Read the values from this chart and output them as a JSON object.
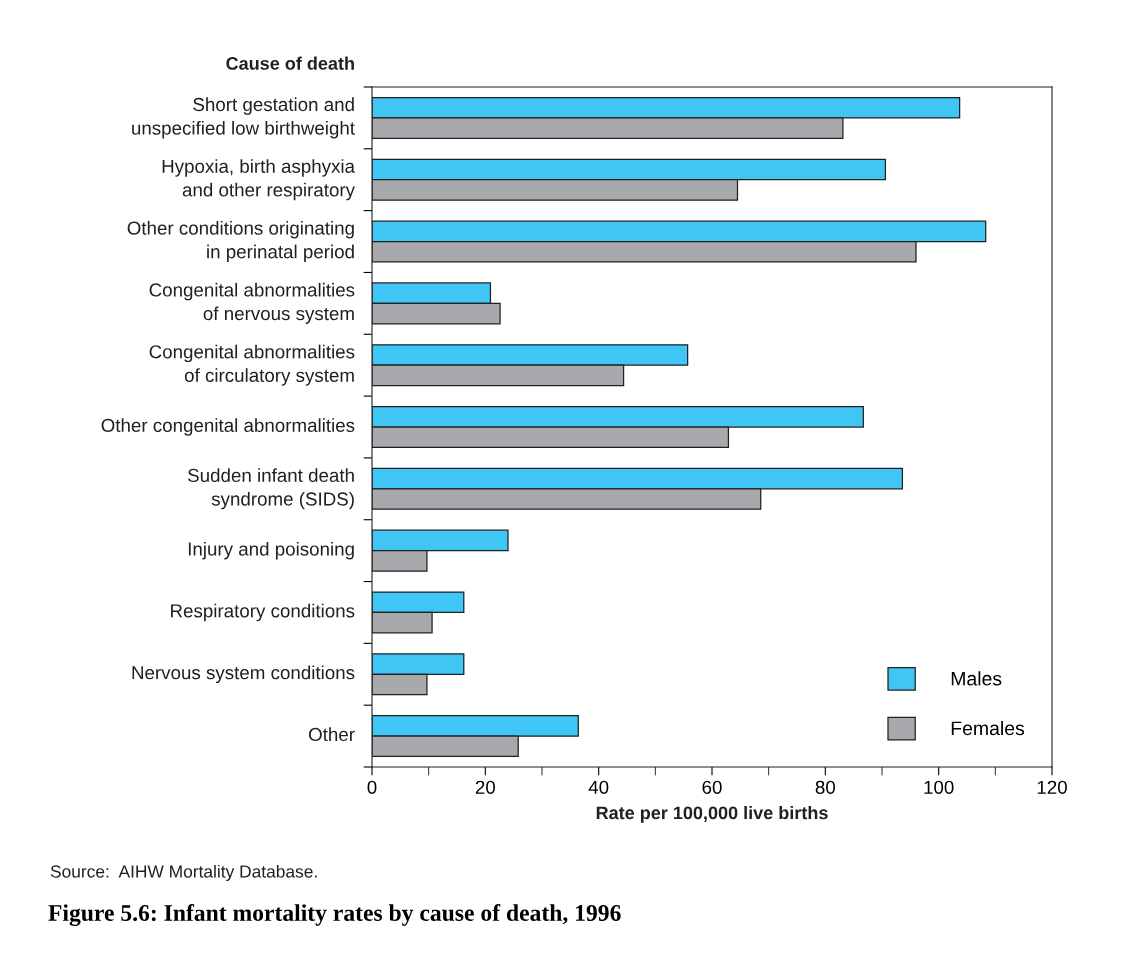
{
  "chart_data": {
    "type": "bar",
    "orientation": "horizontal",
    "title": "Figure 5.6: Infant mortality rates by cause of death, 1996",
    "xlabel": "Rate per 100,000 live births",
    "ylabel": "Cause of death",
    "categories": [
      "Short gestation and\nunspecified low birthweight",
      "Hypoxia, birth asphyxia\nand other respiratory",
      "Other conditions originating\nin perinatal period",
      "Congenital abnormalities\nof nervous system",
      "Congenital abnormalities\nof circulatory system",
      "Other congenital abnormalities",
      "Sudden infant death\nsyndrome (SIDS)",
      "Injury and poisoning",
      "Respiratory conditions",
      "Nervous system conditions",
      "Other"
    ],
    "series": [
      {
        "name": "Males",
        "color": "#40c6f4",
        "values": [
          103.7,
          90.6,
          108.3,
          20.9,
          55.7,
          86.7,
          93.6,
          24.0,
          16.2,
          16.2,
          36.4
        ]
      },
      {
        "name": "Females",
        "color": "#a7a9ac",
        "values": [
          83.1,
          64.5,
          96.0,
          22.6,
          44.4,
          62.9,
          68.6,
          9.7,
          10.6,
          9.7,
          25.8
        ]
      }
    ],
    "xlim": [
      0,
      120
    ],
    "xticks": [
      0,
      20,
      40,
      60,
      80,
      100,
      120
    ],
    "grid": false,
    "legend": "bottom right",
    "annotations": [
      "Source:  AIHW Mortality Database."
    ]
  }
}
